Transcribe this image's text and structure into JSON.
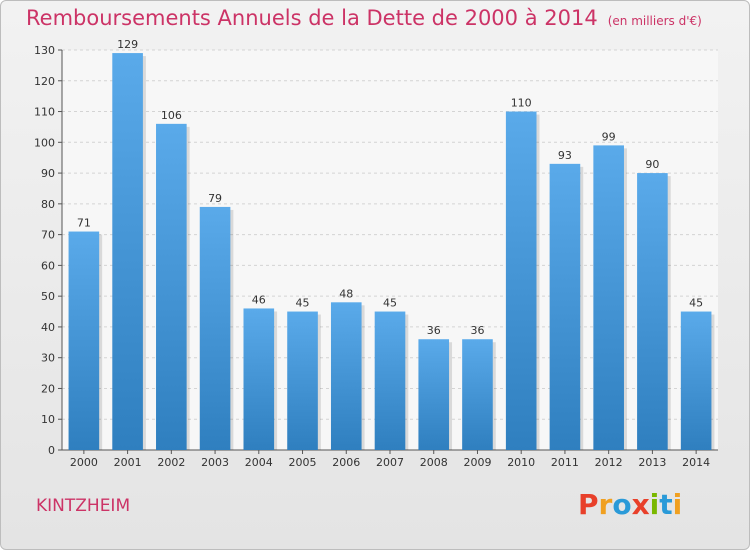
{
  "header": {
    "title": "Remboursements Annuels de la Dette de 2000 à 2014",
    "subtitle": "(en milliers d'€)"
  },
  "footer": {
    "commune": "KINTZHEIM",
    "logo_letters": [
      "P",
      "r",
      "o",
      "x",
      "i",
      "t",
      "i"
    ]
  },
  "colors": {
    "title": "#cc3366",
    "bar_top": "#5aaaea",
    "bar_bottom": "#2f7fbf",
    "logo": [
      "#e8402a",
      "#f0a020",
      "#2a9ad8",
      "#e8402a",
      "#7ab800",
      "#2a9ad8",
      "#f0a020"
    ]
  },
  "chart_data": {
    "type": "bar",
    "title": "Remboursements Annuels de la Dette de 2000 à 2014",
    "xlabel": "",
    "ylabel": "",
    "categories": [
      "2000",
      "2001",
      "2002",
      "2003",
      "2004",
      "2005",
      "2006",
      "2007",
      "2008",
      "2009",
      "2010",
      "2011",
      "2012",
      "2013",
      "2014"
    ],
    "values": [
      71,
      129,
      106,
      79,
      46,
      45,
      48,
      45,
      36,
      36,
      110,
      93,
      99,
      90,
      45
    ],
    "ylim": [
      0,
      130
    ],
    "yticks": [
      0,
      10,
      20,
      30,
      40,
      50,
      60,
      70,
      80,
      90,
      100,
      110,
      120,
      130
    ],
    "grid": true
  }
}
